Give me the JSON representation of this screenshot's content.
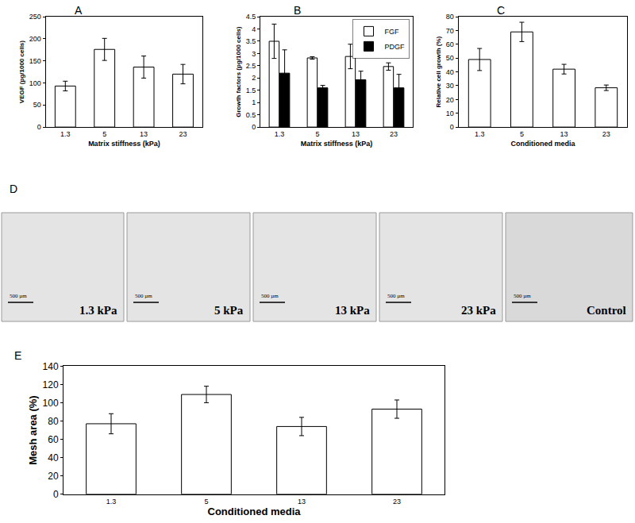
{
  "chart_data": [
    {
      "type": "bar",
      "title": "A",
      "x_label": "Matrix stiffness (kPa)",
      "y_label": "VEGF (pg/1000 cells)",
      "categories": [
        "1.3",
        "5",
        "13",
        "23"
      ],
      "series": [
        {
          "name": "VEGF",
          "color": "#ffffff",
          "values": [
            93,
            176,
            136,
            120
          ],
          "errors": [
            11,
            25,
            25,
            22
          ]
        }
      ],
      "ylim": [
        0,
        250
      ],
      "yticks": [
        0,
        50,
        100,
        150,
        200,
        250
      ],
      "grid": false
    },
    {
      "type": "bar",
      "title": "B",
      "x_label": "Matrix stiffness (kPa)",
      "y_label": "Growth factors (pg/1000 cells)",
      "categories": [
        "1.3",
        "5",
        "13",
        "23"
      ],
      "series": [
        {
          "name": "FGF",
          "color": "#ffffff",
          "values": [
            3.5,
            2.82,
            2.88,
            2.47
          ],
          "errors": [
            0.7,
            0.05,
            0.5,
            0.15
          ]
        },
        {
          "name": "PDGF",
          "color": "#000000",
          "values": [
            2.2,
            1.6,
            1.93,
            1.6
          ],
          "errors": [
            0.95,
            0.1,
            0.35,
            0.55
          ]
        }
      ],
      "ylim": [
        0,
        4.5
      ],
      "yticks": [
        0,
        0.5,
        1,
        1.5,
        2,
        2.5,
        3,
        3.5,
        4,
        4.5
      ],
      "grid": false,
      "legend": "top right"
    },
    {
      "type": "bar",
      "title": "C",
      "x_label": "Conditioned media",
      "y_label": "Relative cell growth (%)",
      "categories": [
        "1.3",
        "5",
        "13",
        "23"
      ],
      "series": [
        {
          "name": "Relative cell growth",
          "color": "#ffffff",
          "values": [
            49,
            69,
            42,
            28.5
          ],
          "errors": [
            8,
            7,
            3.5,
            2
          ]
        }
      ],
      "ylim": [
        0,
        80
      ],
      "yticks": [
        0,
        10,
        20,
        30,
        40,
        50,
        60,
        70,
        80
      ],
      "grid": false
    },
    {
      "type": "bar",
      "title": "E",
      "x_label": "Conditioned media",
      "y_label": "Mesh area (%)",
      "categories": [
        "1.3",
        "5",
        "13",
        "23"
      ],
      "series": [
        {
          "name": "Mesh area",
          "color": "#ffffff",
          "values": [
            77,
            109,
            74,
            93
          ],
          "errors": [
            11,
            9,
            10,
            10
          ]
        }
      ],
      "ylim": [
        0,
        140
      ],
      "yticks": [
        0,
        20,
        40,
        60,
        80,
        100,
        120,
        140
      ],
      "grid": false
    }
  ],
  "image_panel": {
    "title": "D",
    "scale_bar": "500 µm",
    "labels": [
      "1.3 kPa",
      "5 kPa",
      "13 kPa",
      "23 kPa",
      "Control"
    ]
  }
}
